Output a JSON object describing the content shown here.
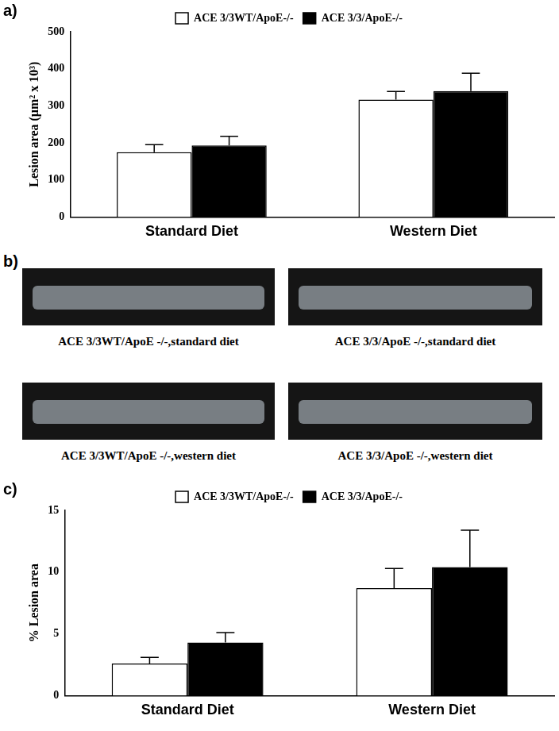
{
  "chart_data": [
    {
      "type": "bar",
      "panel": "a)",
      "y_label": "Lesion area (µm² x 10³)",
      "categories": [
        "Standard Diet",
        "Western Diet"
      ],
      "series": [
        {
          "name": "ACE 3/3WT/ApoE-/-",
          "color": "#ffffff",
          "values": [
            175,
            317
          ],
          "errors": [
            20,
            22
          ]
        },
        {
          "name": "ACE 3/3/ApoE-/-",
          "color": "#000000",
          "values": [
            193,
            340
          ],
          "errors": [
            25,
            48
          ]
        }
      ],
      "ylim": [
        0,
        500
      ],
      "yticks": [
        0,
        100,
        200,
        300,
        400,
        500
      ],
      "grid": false,
      "legend": "top"
    },
    {
      "type": "bar",
      "panel": "c)",
      "y_label": "% Lesion area",
      "categories": [
        "Standard Diet",
        "Western Diet"
      ],
      "series": [
        {
          "name": "ACE 3/3WT/ApoE-/-",
          "color": "#ffffff",
          "values": [
            2.6,
            8.7
          ],
          "errors": [
            0.5,
            1.6
          ]
        },
        {
          "name": "ACE 3/3/ApoE-/-",
          "color": "#000000",
          "values": [
            4.3,
            10.4
          ],
          "errors": [
            0.8,
            3.0
          ]
        }
      ],
      "ylim": [
        0,
        15
      ],
      "yticks": [
        0,
        5,
        10,
        15
      ],
      "grid": false,
      "legend": "top"
    }
  ],
  "photo_panel": {
    "panel": "b)",
    "captions": [
      "ACE 3/3WT/ApoE -/-,standard diet",
      "ACE 3/3/ApoE -/-,standard diet",
      "ACE 3/3WT/ApoE -/-,western diet",
      "ACE 3/3/ApoE -/-,western diet"
    ]
  }
}
